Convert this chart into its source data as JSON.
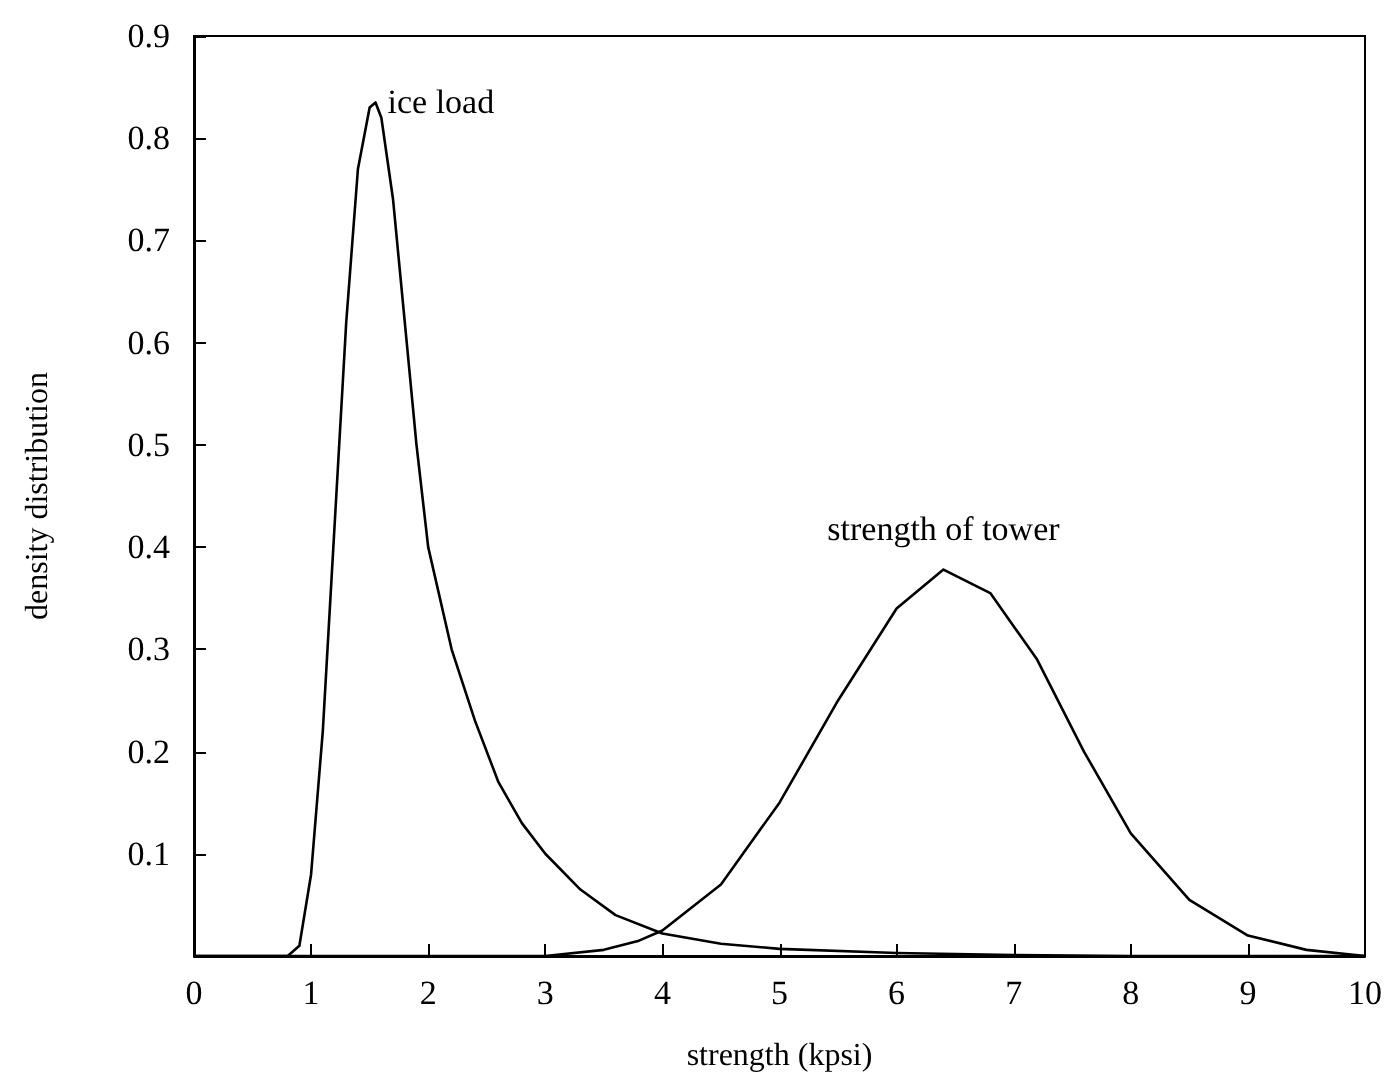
{
  "chart_data": {
    "type": "line",
    "xlabel": "strength (kpsi)",
    "ylabel": "density distribution",
    "xlim": [
      0,
      10
    ],
    "xticks": [
      0,
      1,
      2,
      3,
      4,
      5,
      6,
      7,
      8,
      9,
      10
    ],
    "ylim": [
      0,
      0.9
    ],
    "yticks": [
      0.1,
      0.2,
      0.3,
      0.4,
      0.5,
      0.6,
      0.7,
      0.8,
      0.9
    ],
    "grid": false,
    "marker": "none",
    "line_style": "solid",
    "series": [
      {
        "name": "ice load",
        "color": "#000000",
        "x": [
          0,
          0.5,
          0.8,
          0.9,
          1.0,
          1.1,
          1.2,
          1.3,
          1.4,
          1.5,
          1.55,
          1.6,
          1.7,
          1.8,
          1.9,
          2.0,
          2.2,
          2.4,
          2.6,
          2.8,
          3.0,
          3.3,
          3.6,
          4,
          4.5,
          5,
          6,
          7,
          8,
          9,
          10
        ],
        "values": [
          0,
          0,
          0,
          0.01,
          0.08,
          0.22,
          0.42,
          0.62,
          0.77,
          0.83,
          0.835,
          0.82,
          0.74,
          0.62,
          0.5,
          0.4,
          0.3,
          0.23,
          0.17,
          0.13,
          0.1,
          0.065,
          0.04,
          0.022,
          0.012,
          0.007,
          0.003,
          0.001,
          0,
          0,
          0
        ]
      },
      {
        "name": "strength of tower",
        "color": "#000000",
        "x": [
          0,
          1,
          2,
          3,
          3.5,
          3.8,
          4,
          4.5,
          5,
          5.5,
          6,
          6.4,
          6.8,
          7.2,
          7.6,
          8,
          8.5,
          9,
          9.5,
          10
        ],
        "values": [
          0,
          0,
          0,
          0,
          0.006,
          0.015,
          0.025,
          0.07,
          0.15,
          0.25,
          0.34,
          0.378,
          0.355,
          0.29,
          0.2,
          0.12,
          0.055,
          0.02,
          0.006,
          0
        ]
      }
    ]
  }
}
